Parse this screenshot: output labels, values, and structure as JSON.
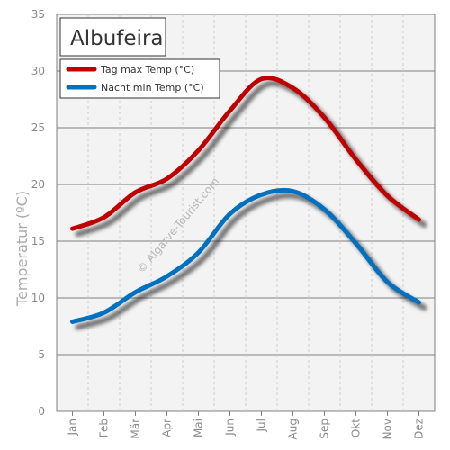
{
  "chart_data": {
    "type": "line",
    "title": "Albufeira",
    "ylabel": "Temperatur (ºC)",
    "xlabel": "",
    "categories": [
      "Jan",
      "Feb",
      "Mär",
      "Apr",
      "Mai",
      "Jun",
      "Jul",
      "Aug",
      "Sep",
      "Okt",
      "Nov",
      "Dez"
    ],
    "ylim": [
      0,
      35
    ],
    "yticks": [
      0,
      5,
      10,
      15,
      20,
      25,
      30,
      35
    ],
    "grid": true,
    "legend_position": "top-left",
    "series": [
      {
        "name": "Tag max Temp (°C)",
        "color": "#c00000",
        "values": [
          16.1,
          17.1,
          19.3,
          20.5,
          23.0,
          26.5,
          29.3,
          28.5,
          25.9,
          22.2,
          19.0,
          16.9
        ]
      },
      {
        "name": "Nacht min Temp (°C)",
        "color": "#0070c0",
        "values": [
          7.9,
          8.7,
          10.5,
          11.9,
          14.0,
          17.4,
          19.1,
          19.4,
          17.8,
          14.8,
          11.4,
          9.6
        ]
      }
    ],
    "watermark": "© Algarve-Tourist.com"
  }
}
